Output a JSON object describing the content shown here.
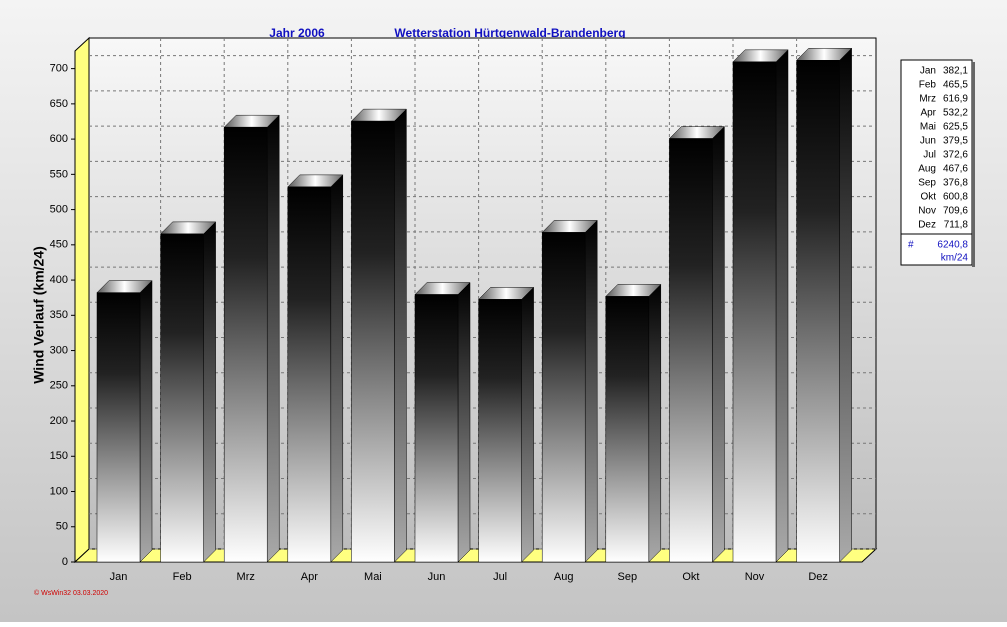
{
  "chart_data": {
    "type": "bar",
    "title": "Jahr  2006",
    "subtitle": "Wetterstation Hürtgenwald-Brandenberg",
    "y_label": "Wind Verlauf  (km/24)",
    "categories": [
      "Jan",
      "Feb",
      "Mrz",
      "Apr",
      "Mai",
      "Jun",
      "Jul",
      "Aug",
      "Sep",
      "Okt",
      "Nov",
      "Dez"
    ],
    "values": [
      382.1,
      465.5,
      616.9,
      532.2,
      625.5,
      379.5,
      372.6,
      467.6,
      376.8,
      600.8,
      709.6,
      711.8
    ],
    "value_labels": [
      "382,1",
      "465,5",
      "616,9",
      "532,2",
      "625,5",
      "379,5",
      "372,6",
      "467,6",
      "376,8",
      "600,8",
      "709,6",
      "711,8"
    ],
    "total_symbol": "#",
    "total": "6240,8",
    "unit": "km/24",
    "footer": "© WsWin32  03.03.2020",
    "ylim": [
      0,
      725
    ],
    "yticks": [
      0,
      50,
      100,
      150,
      200,
      250,
      300,
      350,
      400,
      450,
      500,
      550,
      600,
      650,
      700
    ],
    "grid": true
  }
}
